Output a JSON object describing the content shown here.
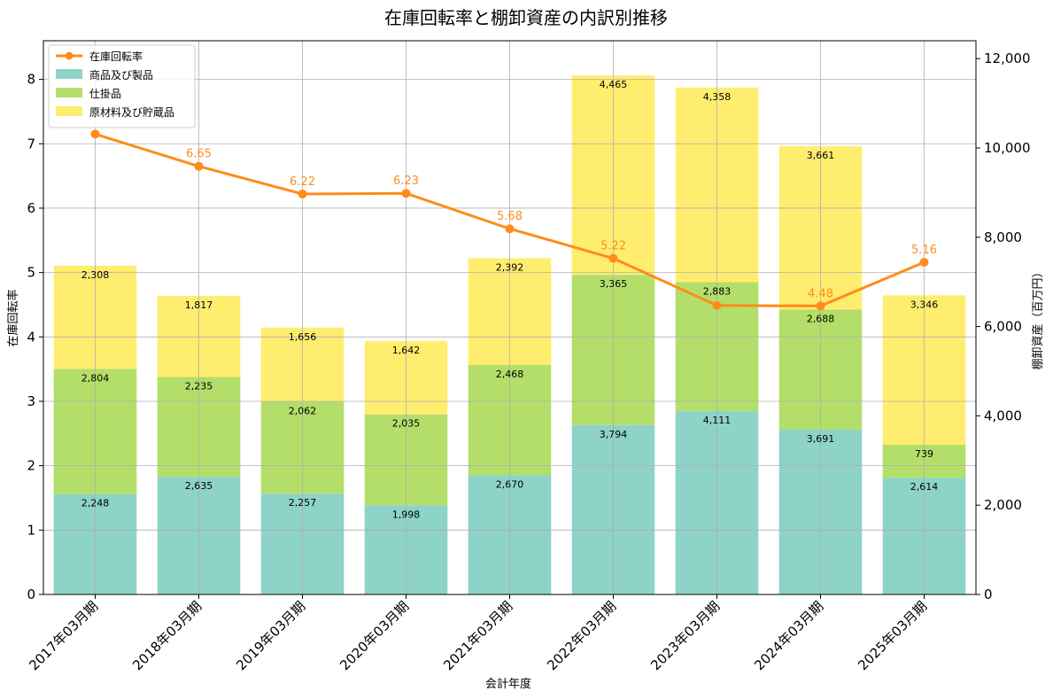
{
  "chart_data": {
    "type": "bar",
    "title": "在庫回転率と棚卸資産の内訳別推移",
    "xlabel": "会計年度",
    "ylabel_left": "在庫回転率",
    "ylabel_right": "棚卸資産（百万円）",
    "categories": [
      "2017年03月期",
      "2018年03月期",
      "2019年03月期",
      "2020年03月期",
      "2021年03月期",
      "2022年03月期",
      "2023年03月期",
      "2024年03月期",
      "2025年03月期"
    ],
    "bar_series": [
      {
        "name": "商品及び製品",
        "color": "#8dd3c7",
        "values": [
          2248,
          2635,
          2257,
          1998,
          2670,
          3794,
          4111,
          3691,
          2614
        ]
      },
      {
        "name": "仕掛品",
        "color": "#b3de69",
        "values": [
          2804,
          2235,
          2062,
          2035,
          2468,
          3365,
          2883,
          2688,
          739
        ]
      },
      {
        "name": "原材料及び貯蔵品",
        "color": "#ffed6f",
        "values": [
          2308,
          1817,
          1656,
          1642,
          2392,
          4465,
          4358,
          3661,
          3346
        ]
      }
    ],
    "bar_value_labels": [
      [
        "2,248",
        "2,635",
        "2,257",
        "1,998",
        "2,670",
        "3,794",
        "4,111",
        "3,691",
        "2,614"
      ],
      [
        "2,804",
        "2,235",
        "2,062",
        "2,035",
        "2,468",
        "3,365",
        "2,883",
        "2,688",
        "739"
      ],
      [
        "2,308",
        "1,817",
        "1,656",
        "1,642",
        "2,392",
        "4,465",
        "4,358",
        "3,661",
        "3,346"
      ]
    ],
    "line_series": {
      "name": "在庫回転率",
      "color": "#ff8c1a",
      "values": [
        7.15,
        6.65,
        6.22,
        6.23,
        5.68,
        5.22,
        4.49,
        4.48,
        5.16
      ]
    },
    "line_value_labels": [
      "",
      "6.65",
      "6.22",
      "6.23",
      "5.68",
      "5.22",
      "",
      "4.48",
      "5.16"
    ],
    "ylim_left": [
      0,
      8.6
    ],
    "ylim_right": [
      0,
      12400
    ],
    "yticks_left": [
      0,
      1,
      2,
      3,
      4,
      5,
      6,
      7,
      8
    ],
    "yticks_right": [
      0,
      2000,
      4000,
      6000,
      8000,
      10000,
      12000
    ],
    "yticks_right_labels": [
      "0",
      "2,000",
      "4,000",
      "6,000",
      "8,000",
      "10,000",
      "12,000"
    ],
    "grid": true,
    "legend_position": "top-left"
  }
}
